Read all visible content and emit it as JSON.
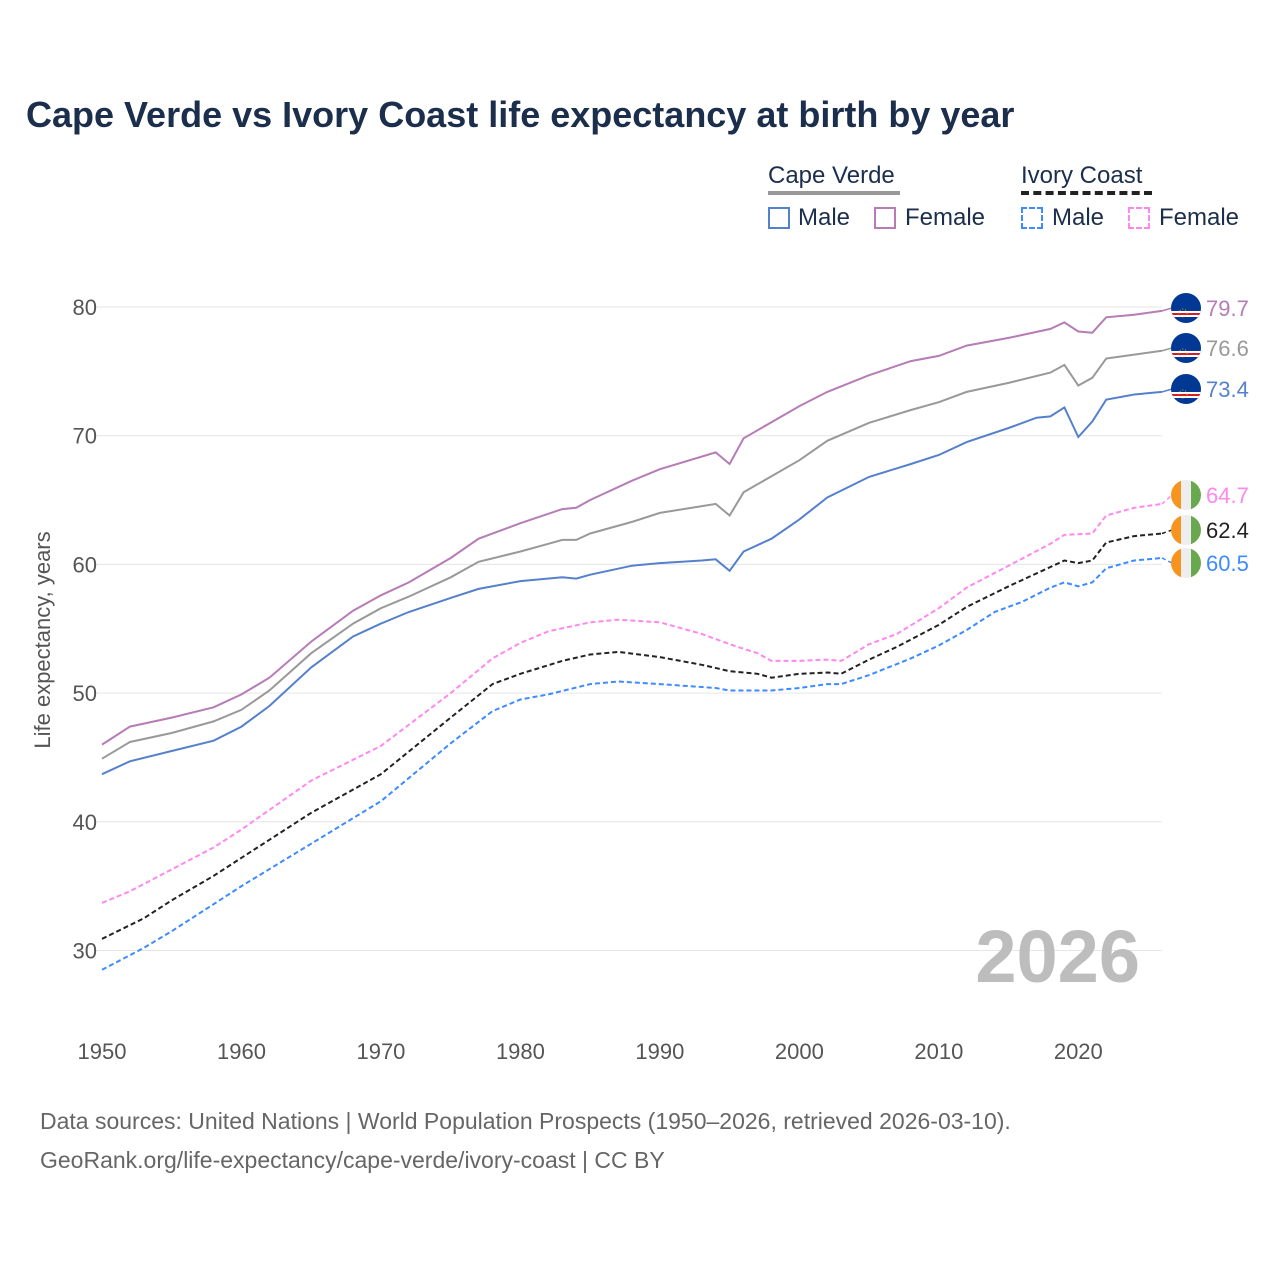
{
  "chart_data": {
    "type": "line",
    "title": "Cape Verde vs Ivory Coast life expectancy at birth by year",
    "xlabel": "",
    "ylabel": "Life expectancy, years",
    "xlim": [
      1950,
      2026
    ],
    "ylim": [
      25,
      83
    ],
    "x_ticks": [
      "1950",
      "1960",
      "1970",
      "1980",
      "1990",
      "2000",
      "2010",
      "2020"
    ],
    "y_ticks": [
      "30",
      "40",
      "50",
      "60",
      "70",
      "80"
    ],
    "grid": true,
    "year_watermark": "2026",
    "legend": {
      "position": "top-right",
      "groups": [
        {
          "name": "Cape Verde",
          "items": [
            "Male",
            "Female"
          ]
        },
        {
          "name": "Ivory Coast",
          "items": [
            "Male",
            "Female"
          ]
        }
      ]
    },
    "series": [
      {
        "name": "Cape Verde Female",
        "country": "Cape Verde",
        "color": "#b57cb5",
        "dashed": false,
        "end_label": "79.7",
        "points": [
          [
            1950,
            46.0
          ],
          [
            1952,
            47.4
          ],
          [
            1955,
            48.1
          ],
          [
            1958,
            48.9
          ],
          [
            1960,
            49.9
          ],
          [
            1962,
            51.2
          ],
          [
            1965,
            54.0
          ],
          [
            1968,
            56.4
          ],
          [
            1970,
            57.6
          ],
          [
            1972,
            58.6
          ],
          [
            1975,
            60.5
          ],
          [
            1977,
            62.0
          ],
          [
            1980,
            63.2
          ],
          [
            1983,
            64.3
          ],
          [
            1984,
            64.4
          ],
          [
            1985,
            65.0
          ],
          [
            1988,
            66.5
          ],
          [
            1990,
            67.4
          ],
          [
            1994,
            68.7
          ],
          [
            1995,
            67.8
          ],
          [
            1996,
            69.8
          ],
          [
            2000,
            72.3
          ],
          [
            2002,
            73.4
          ],
          [
            2005,
            74.7
          ],
          [
            2008,
            75.8
          ],
          [
            2010,
            76.2
          ],
          [
            2012,
            77.0
          ],
          [
            2015,
            77.6
          ],
          [
            2018,
            78.3
          ],
          [
            2019,
            78.8
          ],
          [
            2020,
            78.1
          ],
          [
            2021,
            78.0
          ],
          [
            2022,
            79.2
          ],
          [
            2024,
            79.4
          ],
          [
            2026,
            79.7
          ]
        ]
      },
      {
        "name": "Cape Verde Total",
        "country": "Cape Verde",
        "color": "#999999",
        "dashed": false,
        "end_label": "76.6",
        "points": [
          [
            1950,
            44.9
          ],
          [
            1952,
            46.2
          ],
          [
            1955,
            46.9
          ],
          [
            1958,
            47.8
          ],
          [
            1960,
            48.7
          ],
          [
            1962,
            50.2
          ],
          [
            1965,
            53.1
          ],
          [
            1968,
            55.4
          ],
          [
            1970,
            56.6
          ],
          [
            1972,
            57.5
          ],
          [
            1975,
            59.0
          ],
          [
            1977,
            60.2
          ],
          [
            1980,
            61.0
          ],
          [
            1982,
            61.6
          ],
          [
            1983,
            61.9
          ],
          [
            1984,
            61.9
          ],
          [
            1985,
            62.4
          ],
          [
            1988,
            63.3
          ],
          [
            1990,
            64.0
          ],
          [
            1994,
            64.7
          ],
          [
            1995,
            63.8
          ],
          [
            1996,
            65.6
          ],
          [
            2000,
            68.1
          ],
          [
            2002,
            69.6
          ],
          [
            2005,
            71.0
          ],
          [
            2008,
            72.0
          ],
          [
            2010,
            72.6
          ],
          [
            2012,
            73.4
          ],
          [
            2015,
            74.1
          ],
          [
            2018,
            74.9
          ],
          [
            2019,
            75.5
          ],
          [
            2020,
            73.9
          ],
          [
            2021,
            74.5
          ],
          [
            2022,
            76.0
          ],
          [
            2024,
            76.3
          ],
          [
            2026,
            76.6
          ]
        ]
      },
      {
        "name": "Cape Verde Male",
        "country": "Cape Verde",
        "color": "#5580cc",
        "dashed": false,
        "end_label": "73.4",
        "points": [
          [
            1950,
            43.7
          ],
          [
            1952,
            44.7
          ],
          [
            1955,
            45.5
          ],
          [
            1958,
            46.3
          ],
          [
            1960,
            47.4
          ],
          [
            1962,
            49.0
          ],
          [
            1965,
            52.0
          ],
          [
            1968,
            54.4
          ],
          [
            1970,
            55.4
          ],
          [
            1972,
            56.3
          ],
          [
            1975,
            57.4
          ],
          [
            1977,
            58.1
          ],
          [
            1980,
            58.7
          ],
          [
            1983,
            59.0
          ],
          [
            1984,
            58.9
          ],
          [
            1985,
            59.2
          ],
          [
            1988,
            59.9
          ],
          [
            1990,
            60.1
          ],
          [
            1993,
            60.3
          ],
          [
            1994,
            60.4
          ],
          [
            1995,
            59.5
          ],
          [
            1996,
            61.0
          ],
          [
            1998,
            62.0
          ],
          [
            2000,
            63.5
          ],
          [
            2002,
            65.2
          ],
          [
            2005,
            66.8
          ],
          [
            2008,
            67.8
          ],
          [
            2010,
            68.5
          ],
          [
            2012,
            69.5
          ],
          [
            2015,
            70.6
          ],
          [
            2017,
            71.4
          ],
          [
            2018,
            71.5
          ],
          [
            2019,
            72.2
          ],
          [
            2020,
            69.9
          ],
          [
            2021,
            71.1
          ],
          [
            2022,
            72.8
          ],
          [
            2024,
            73.2
          ],
          [
            2026,
            73.4
          ]
        ]
      },
      {
        "name": "Ivory Coast Female",
        "country": "Ivory Coast",
        "color": "#ff88ee",
        "dashed": true,
        "end_label": "64.7",
        "points": [
          [
            1950,
            33.7
          ],
          [
            1952,
            34.6
          ],
          [
            1955,
            36.3
          ],
          [
            1958,
            38.0
          ],
          [
            1960,
            39.4
          ],
          [
            1965,
            43.2
          ],
          [
            1970,
            45.9
          ],
          [
            1975,
            50.0
          ],
          [
            1978,
            52.7
          ],
          [
            1980,
            53.9
          ],
          [
            1982,
            54.8
          ],
          [
            1985,
            55.5
          ],
          [
            1987,
            55.7
          ],
          [
            1990,
            55.5
          ],
          [
            1993,
            54.6
          ],
          [
            1995,
            53.8
          ],
          [
            1997,
            53.1
          ],
          [
            1998,
            52.5
          ],
          [
            2000,
            52.5
          ],
          [
            2002,
            52.6
          ],
          [
            2003,
            52.5
          ],
          [
            2005,
            53.8
          ],
          [
            2007,
            54.6
          ],
          [
            2010,
            56.6
          ],
          [
            2012,
            58.2
          ],
          [
            2015,
            59.9
          ],
          [
            2018,
            61.6
          ],
          [
            2019,
            62.3
          ],
          [
            2021,
            62.4
          ],
          [
            2022,
            63.8
          ],
          [
            2024,
            64.4
          ],
          [
            2026,
            64.7
          ]
        ]
      },
      {
        "name": "Ivory Coast Total",
        "country": "Ivory Coast",
        "color": "#222222",
        "dashed": true,
        "end_label": "62.4",
        "points": [
          [
            1950,
            30.9
          ],
          [
            1953,
            32.5
          ],
          [
            1955,
            33.9
          ],
          [
            1958,
            35.8
          ],
          [
            1960,
            37.2
          ],
          [
            1965,
            40.7
          ],
          [
            1970,
            43.7
          ],
          [
            1975,
            48.1
          ],
          [
            1978,
            50.7
          ],
          [
            1980,
            51.5
          ],
          [
            1983,
            52.5
          ],
          [
            1985,
            53.0
          ],
          [
            1987,
            53.2
          ],
          [
            1990,
            52.8
          ],
          [
            1993,
            52.2
          ],
          [
            1995,
            51.7
          ],
          [
            1997,
            51.5
          ],
          [
            1998,
            51.2
          ],
          [
            2000,
            51.5
          ],
          [
            2002,
            51.6
          ],
          [
            2003,
            51.5
          ],
          [
            2005,
            52.6
          ],
          [
            2007,
            53.6
          ],
          [
            2010,
            55.3
          ],
          [
            2012,
            56.7
          ],
          [
            2015,
            58.3
          ],
          [
            2018,
            59.8
          ],
          [
            2019,
            60.3
          ],
          [
            2020,
            60.1
          ],
          [
            2021,
            60.3
          ],
          [
            2022,
            61.7
          ],
          [
            2024,
            62.2
          ],
          [
            2026,
            62.4
          ]
        ]
      },
      {
        "name": "Ivory Coast Male",
        "country": "Ivory Coast",
        "color": "#3d8bff",
        "dashed": true,
        "end_label": "60.5",
        "points": [
          [
            1950,
            28.5
          ],
          [
            1953,
            30.2
          ],
          [
            1955,
            31.5
          ],
          [
            1958,
            33.6
          ],
          [
            1960,
            35.0
          ],
          [
            1965,
            38.3
          ],
          [
            1970,
            41.6
          ],
          [
            1975,
            46.1
          ],
          [
            1978,
            48.6
          ],
          [
            1980,
            49.5
          ],
          [
            1982,
            49.9
          ],
          [
            1985,
            50.7
          ],
          [
            1987,
            50.9
          ],
          [
            1990,
            50.7
          ],
          [
            1994,
            50.4
          ],
          [
            1995,
            50.2
          ],
          [
            1998,
            50.2
          ],
          [
            2000,
            50.4
          ],
          [
            2002,
            50.7
          ],
          [
            2003,
            50.7
          ],
          [
            2005,
            51.4
          ],
          [
            2008,
            52.7
          ],
          [
            2010,
            53.7
          ],
          [
            2012,
            54.9
          ],
          [
            2014,
            56.3
          ],
          [
            2016,
            57.1
          ],
          [
            2018,
            58.2
          ],
          [
            2019,
            58.6
          ],
          [
            2020,
            58.3
          ],
          [
            2021,
            58.6
          ],
          [
            2022,
            59.7
          ],
          [
            2024,
            60.3
          ],
          [
            2026,
            60.5
          ]
        ]
      }
    ]
  },
  "footer": {
    "line1": "Data sources: United Nations | World Population Prospects (1950–2026, retrieved 2026-03-10).",
    "line2": "GeoRank.org/life-expectancy/cape-verde/ivory-coast | CC BY"
  }
}
